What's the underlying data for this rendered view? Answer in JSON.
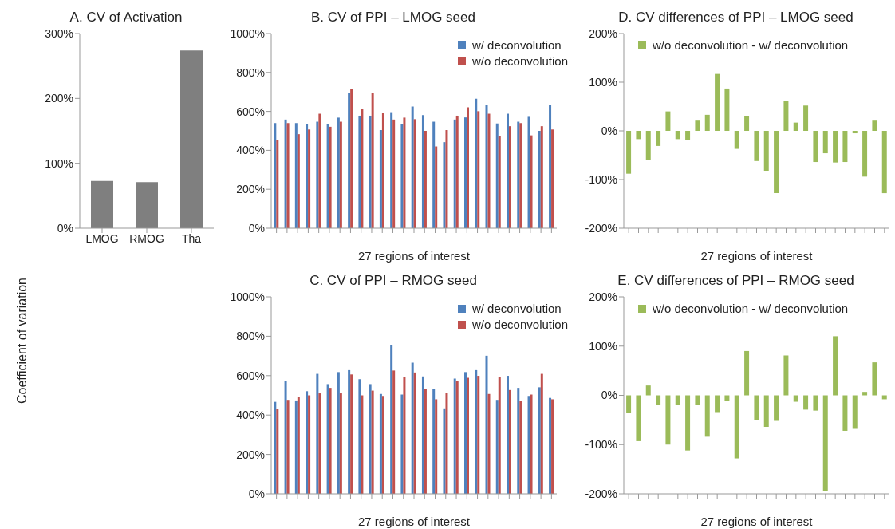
{
  "chart_data": [
    {
      "type": "bar",
      "title": "A. CV of Activation",
      "ylabel": "Coefficient of variation",
      "categories": [
        "LMOG",
        "RMOG",
        "Tha"
      ],
      "values": [
        73,
        71,
        274
      ],
      "color": "#7f7f7f",
      "ylim": [
        0,
        300
      ],
      "yticks": [
        {
          "value": 0,
          "label": "0%"
        },
        {
          "value": 100,
          "label": "100%"
        },
        {
          "value": 200,
          "label": "200%"
        },
        {
          "value": 300,
          "label": "300%"
        }
      ],
      "grid": false,
      "legend": false
    },
    {
      "type": "bar",
      "title": "B. CV of PPI – LMOG seed",
      "xlabel": "27 regions of interest",
      "categories": [
        null,
        null,
        null,
        null,
        null,
        null,
        null,
        null,
        null,
        null,
        null,
        null,
        null,
        null,
        null,
        null,
        null,
        null,
        null,
        null,
        null,
        null,
        null,
        null,
        null,
        null,
        null
      ],
      "series": [
        {
          "name": "w/ deconvolution",
          "color": "#4f81bd",
          "values": [
            540,
            558,
            540,
            537,
            547,
            537,
            568,
            695,
            578,
            578,
            504,
            596,
            537,
            625,
            581,
            547,
            442,
            558,
            569,
            665,
            635,
            538,
            588,
            547,
            572,
            500,
            632
          ]
        },
        {
          "name": "w/o deconvolution",
          "color": "#c0504d",
          "values": [
            453,
            540,
            483,
            507,
            588,
            521,
            547,
            717,
            612,
            695,
            591,
            558,
            568,
            560,
            500,
            420,
            504,
            578,
            621,
            601,
            588,
            474,
            524,
            540,
            477,
            524,
            507
          ]
        }
      ],
      "ylim": [
        0,
        1000
      ],
      "yticks": [
        {
          "value": 0,
          "label": "0%"
        },
        {
          "value": 200,
          "label": "200%"
        },
        {
          "value": 400,
          "label": "400%"
        },
        {
          "value": 600,
          "label": "600%"
        },
        {
          "value": 800,
          "label": "800%"
        },
        {
          "value": 1000,
          "label": "1000%"
        }
      ],
      "grid": false,
      "legend": "top right"
    },
    {
      "type": "bar",
      "title": "C. CV of PPI – RMOG seed",
      "xlabel": "27 regions of interest",
      "categories": [
        null,
        null,
        null,
        null,
        null,
        null,
        null,
        null,
        null,
        null,
        null,
        null,
        null,
        null,
        null,
        null,
        null,
        null,
        null,
        null,
        null,
        null,
        null,
        null,
        null,
        null,
        null
      ],
      "series": [
        {
          "name": "w/ deconvolution",
          "color": "#4f81bd",
          "values": [
            467,
            572,
            474,
            521,
            609,
            557,
            618,
            628,
            582,
            557,
            507,
            755,
            504,
            666,
            596,
            531,
            434,
            585,
            618,
            628,
            701,
            477,
            599,
            538,
            497,
            541,
            487
          ]
        },
        {
          "name": "w/o deconvolution",
          "color": "#c0504d",
          "values": [
            433,
            477,
            494,
            500,
            510,
            538,
            510,
            606,
            500,
            524,
            497,
            626,
            592,
            616,
            531,
            480,
            514,
            572,
            589,
            599,
            507,
            595,
            527,
            470,
            504,
            609,
            480
          ]
        }
      ],
      "ylim": [
        0,
        1000
      ],
      "yticks": [
        {
          "value": 0,
          "label": "0%"
        },
        {
          "value": 200,
          "label": "200%"
        },
        {
          "value": 400,
          "label": "400%"
        },
        {
          "value": 600,
          "label": "600%"
        },
        {
          "value": 800,
          "label": "800%"
        },
        {
          "value": 1000,
          "label": "1000%"
        }
      ],
      "grid": false,
      "legend": "top right"
    },
    {
      "type": "bar",
      "title": "D. CV differences of PPI – LMOG seed",
      "xlabel": "27 regions of interest",
      "categories": [
        null,
        null,
        null,
        null,
        null,
        null,
        null,
        null,
        null,
        null,
        null,
        null,
        null,
        null,
        null,
        null,
        null,
        null,
        null,
        null,
        null,
        null,
        null,
        null,
        null,
        null,
        null
      ],
      "series": [
        {
          "name": "w/o deconvolution - w/ deconvolution",
          "color": "#9bbb59",
          "values": [
            -88,
            -17,
            -60,
            -31,
            40,
            -17,
            -19,
            21,
            33,
            117,
            87,
            -37,
            31,
            -62,
            -82,
            -128,
            62,
            17,
            52,
            -64,
            -46,
            -65,
            -64,
            -5,
            -94,
            21,
            -128
          ]
        }
      ],
      "ylim": [
        -200,
        200
      ],
      "yticks": [
        {
          "value": -200,
          "label": "-200%"
        },
        {
          "value": -100,
          "label": "-100%"
        },
        {
          "value": 0,
          "label": "0%"
        },
        {
          "value": 100,
          "label": "100%"
        },
        {
          "value": 200,
          "label": "200%"
        }
      ],
      "grid": false,
      "legend": "top"
    },
    {
      "type": "bar",
      "title": "E. CV differences of PPI – RMOG seed",
      "xlabel": "27 regions of interest",
      "categories": [
        null,
        null,
        null,
        null,
        null,
        null,
        null,
        null,
        null,
        null,
        null,
        null,
        null,
        null,
        null,
        null,
        null,
        null,
        null,
        null,
        null,
        null,
        null,
        null,
        null,
        null,
        null
      ],
      "series": [
        {
          "name": "w/o deconvolution - w/ deconvolution",
          "color": "#9bbb59",
          "values": [
            -36,
            -93,
            20,
            -20,
            -100,
            -20,
            -112,
            -20,
            -84,
            -34,
            -12,
            -128,
            90,
            -50,
            -64,
            -52,
            81,
            -13,
            -29,
            -31,
            -195,
            120,
            -72,
            -68,
            7,
            67,
            -8
          ]
        }
      ],
      "ylim": [
        -200,
        200
      ],
      "yticks": [
        {
          "value": -200,
          "label": "-200%"
        },
        {
          "value": -100,
          "label": "-100%"
        },
        {
          "value": 0,
          "label": "0%"
        },
        {
          "value": 100,
          "label": "100%"
        },
        {
          "value": 200,
          "label": "200%"
        }
      ],
      "grid": false,
      "legend": "top"
    }
  ]
}
